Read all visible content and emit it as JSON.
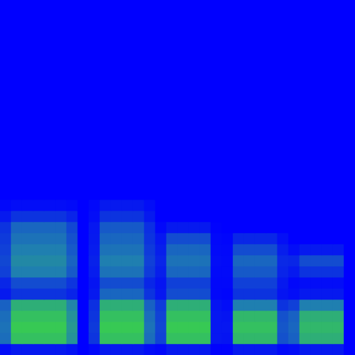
{
  "chart_data": {
    "type": "heatmap",
    "tick_labels": false,
    "zlim": [
      0,
      1
    ],
    "z": [
      [
        0.05,
        0.1,
        0.1,
        0.1,
        0.1,
        0.1,
        0.07,
        0,
        0.03,
        0.1,
        0.1,
        0.1,
        0.1,
        0.05,
        0.03,
        0.1,
        0.1,
        0.1,
        0.1,
        0.01,
        0.01,
        0.1,
        0.1,
        0.1,
        0.1,
        0.04,
        0.05,
        0.1,
        0.1,
        0.1,
        0.1,
        0
      ],
      [
        0.43,
        0.85,
        0.85,
        0.85,
        0.85,
        0.85,
        0.6,
        0,
        0.21,
        0.85,
        0.85,
        0.85,
        0.85,
        0.43,
        0.26,
        0.85,
        0.85,
        0.85,
        0.85,
        0.09,
        0.08,
        0.8,
        0.8,
        0.8,
        0.8,
        0.32,
        0.38,
        0.75,
        0.75,
        0.75,
        0.75,
        0
      ],
      [
        0.45,
        0.9,
        0.9,
        0.9,
        0.9,
        0.9,
        0.63,
        0,
        0.23,
        0.9,
        0.9,
        0.9,
        0.9,
        0.45,
        0.27,
        0.9,
        0.9,
        0.9,
        0.9,
        0.09,
        0.09,
        0.85,
        0.85,
        0.85,
        0.85,
        0.34,
        0.4,
        0.8,
        0.8,
        0.8,
        0.8,
        0
      ],
      [
        0.43,
        0.85,
        0.85,
        0.85,
        0.85,
        0.85,
        0.6,
        0,
        0.21,
        0.85,
        0.85,
        0.85,
        0.85,
        0.43,
        0.26,
        0.85,
        0.85,
        0.85,
        0.85,
        0.09,
        0.08,
        0.8,
        0.8,
        0.8,
        0.8,
        0.32,
        0.38,
        0.75,
        0.75,
        0.75,
        0.75,
        0
      ],
      [
        0.38,
        0.75,
        0.75,
        0.75,
        0.75,
        0.75,
        0.53,
        0,
        0.19,
        0.75,
        0.75,
        0.75,
        0.75,
        0.38,
        0.23,
        0.75,
        0.75,
        0.75,
        0.75,
        0.08,
        0.05,
        0.5,
        0.5,
        0.5,
        0.5,
        0.2,
        0.25,
        0.5,
        0.5,
        0.5,
        0.5,
        0
      ],
      [
        0.1,
        0.2,
        0.2,
        0.2,
        0.2,
        0.2,
        0.14,
        0,
        0.1,
        0.4,
        0.4,
        0.4,
        0.4,
        0.2,
        0.09,
        0.3,
        0.3,
        0.3,
        0.3,
        0.03,
        0.02,
        0.2,
        0.2,
        0.2,
        0.2,
        0.08,
        0.05,
        0.1,
        0.1,
        0.1,
        0.1,
        0
      ],
      [
        0.15,
        0.3,
        0.3,
        0.3,
        0.3,
        0.3,
        0.21,
        0,
        0.08,
        0.3,
        0.3,
        0.3,
        0.3,
        0.15,
        0.08,
        0.25,
        0.25,
        0.25,
        0.25,
        0.03,
        0.03,
        0.25,
        0.25,
        0.25,
        0.25,
        0.1,
        0.03,
        0.05,
        0.05,
        0.05,
        0.05,
        0
      ],
      [
        0.25,
        0.5,
        0.5,
        0.5,
        0.5,
        0.5,
        0.35,
        0,
        0.11,
        0.45,
        0.45,
        0.45,
        0.45,
        0.23,
        0.12,
        0.4,
        0.4,
        0.4,
        0.4,
        0.04,
        0.04,
        0.35,
        0.35,
        0.35,
        0.35,
        0.14,
        0.1,
        0.2,
        0.2,
        0.2,
        0.2,
        0
      ],
      [
        0.28,
        0.55,
        0.55,
        0.55,
        0.55,
        0.55,
        0.39,
        0,
        0.13,
        0.5,
        0.5,
        0.5,
        0.5,
        0.25,
        0.14,
        0.45,
        0.45,
        0.45,
        0.45,
        0.05,
        0.04,
        0.4,
        0.4,
        0.4,
        0.4,
        0.16,
        0.15,
        0.3,
        0.3,
        0.3,
        0.3,
        0
      ],
      [
        0.25,
        0.5,
        0.5,
        0.5,
        0.5,
        0.5,
        0.35,
        0,
        0.11,
        0.45,
        0.45,
        0.45,
        0.45,
        0.23,
        0.12,
        0.4,
        0.4,
        0.4,
        0.4,
        0.04,
        0.03,
        0.3,
        0.3,
        0.3,
        0.3,
        0.12,
        0.05,
        0.1,
        0.1,
        0.1,
        0.1,
        0
      ],
      [
        0.23,
        0.45,
        0.45,
        0.45,
        0.45,
        0.45,
        0.32,
        0,
        0.1,
        0.4,
        0.4,
        0.4,
        0.4,
        0.2,
        0.09,
        0.3,
        0.3,
        0.3,
        0.3,
        0.03,
        0.02,
        0.15,
        0.15,
        0.15,
        0.15,
        0.06,
        0,
        0,
        0,
        0,
        0,
        0
      ],
      [
        0.2,
        0.4,
        0.4,
        0.4,
        0.4,
        0.4,
        0.28,
        0,
        0.09,
        0.35,
        0.35,
        0.35,
        0.35,
        0.18,
        0.03,
        0.1,
        0.1,
        0.1,
        0.1,
        0.01,
        0,
        0,
        0,
        0,
        0,
        0,
        0,
        0,
        0,
        0,
        0,
        0
      ],
      [
        0.1,
        0.2,
        0.2,
        0.2,
        0.2,
        0.2,
        0.14,
        0,
        0.05,
        0.2,
        0.2,
        0.2,
        0.2,
        0.1,
        0,
        0,
        0,
        0,
        0,
        0,
        0,
        0,
        0,
        0,
        0,
        0,
        0,
        0,
        0,
        0,
        0,
        0
      ],
      [
        0.03,
        0.05,
        0.05,
        0.05,
        0.05,
        0.05,
        0.04,
        0,
        0.03,
        0.1,
        0.1,
        0.1,
        0.1,
        0.05,
        0,
        0,
        0,
        0,
        0,
        0,
        0,
        0,
        0,
        0,
        0,
        0,
        0,
        0,
        0,
        0,
        0,
        0
      ],
      [
        0,
        0,
        0,
        0,
        0,
        0,
        0,
        0,
        0,
        0,
        0,
        0,
        0,
        0,
        0,
        0,
        0,
        0,
        0,
        0,
        0,
        0,
        0,
        0,
        0,
        0,
        0,
        0,
        0,
        0,
        0,
        0
      ],
      [
        0,
        0,
        0,
        0,
        0,
        0,
        0,
        0,
        0,
        0,
        0,
        0,
        0,
        0,
        0,
        0,
        0,
        0,
        0,
        0,
        0,
        0,
        0,
        0,
        0,
        0,
        0,
        0,
        0,
        0,
        0,
        0
      ],
      [
        0,
        0,
        0,
        0,
        0,
        0,
        0,
        0,
        0,
        0,
        0,
        0,
        0,
        0,
        0,
        0,
        0,
        0,
        0,
        0,
        0,
        0,
        0,
        0,
        0,
        0,
        0,
        0,
        0,
        0,
        0,
        0
      ],
      [
        0,
        0,
        0,
        0,
        0,
        0,
        0,
        0,
        0,
        0,
        0,
        0,
        0,
        0,
        0,
        0,
        0,
        0,
        0,
        0,
        0,
        0,
        0,
        0,
        0,
        0,
        0,
        0,
        0,
        0,
        0,
        0
      ],
      [
        0,
        0,
        0,
        0,
        0,
        0,
        0,
        0,
        0,
        0,
        0,
        0,
        0,
        0,
        0,
        0,
        0,
        0,
        0,
        0,
        0,
        0,
        0,
        0,
        0,
        0,
        0,
        0,
        0,
        0,
        0,
        0
      ],
      [
        0,
        0,
        0,
        0,
        0,
        0,
        0,
        0,
        0,
        0,
        0,
        0,
        0,
        0,
        0,
        0,
        0,
        0,
        0,
        0,
        0,
        0,
        0,
        0,
        0,
        0,
        0,
        0,
        0,
        0,
        0,
        0
      ],
      [
        0,
        0,
        0,
        0,
        0,
        0,
        0,
        0,
        0,
        0,
        0,
        0,
        0,
        0,
        0,
        0,
        0,
        0,
        0,
        0,
        0,
        0,
        0,
        0,
        0,
        0,
        0,
        0,
        0,
        0,
        0,
        0
      ],
      [
        0,
        0,
        0,
        0,
        0,
        0,
        0,
        0,
        0,
        0,
        0,
        0,
        0,
        0,
        0,
        0,
        0,
        0,
        0,
        0,
        0,
        0,
        0,
        0,
        0,
        0,
        0,
        0,
        0,
        0,
        0,
        0
      ],
      [
        0,
        0,
        0,
        0,
        0,
        0,
        0,
        0,
        0,
        0,
        0,
        0,
        0,
        0,
        0,
        0,
        0,
        0,
        0,
        0,
        0,
        0,
        0,
        0,
        0,
        0,
        0,
        0,
        0,
        0,
        0,
        0
      ],
      [
        0,
        0,
        0,
        0,
        0,
        0,
        0,
        0,
        0,
        0,
        0,
        0,
        0,
        0,
        0,
        0,
        0,
        0,
        0,
        0,
        0,
        0,
        0,
        0,
        0,
        0,
        0,
        0,
        0,
        0,
        0,
        0
      ],
      [
        0,
        0,
        0,
        0,
        0,
        0,
        0,
        0,
        0,
        0,
        0,
        0,
        0,
        0,
        0,
        0,
        0,
        0,
        0,
        0,
        0,
        0,
        0,
        0,
        0,
        0,
        0,
        0,
        0,
        0,
        0,
        0
      ],
      [
        0,
        0,
        0,
        0,
        0,
        0,
        0,
        0,
        0,
        0,
        0,
        0,
        0,
        0,
        0,
        0,
        0,
        0,
        0,
        0,
        0,
        0,
        0,
        0,
        0,
        0,
        0,
        0,
        0,
        0,
        0,
        0
      ],
      [
        0,
        0,
        0,
        0,
        0,
        0,
        0,
        0,
        0,
        0,
        0,
        0,
        0,
        0,
        0,
        0,
        0,
        0,
        0,
        0,
        0,
        0,
        0,
        0,
        0,
        0,
        0,
        0,
        0,
        0,
        0,
        0
      ],
      [
        0,
        0,
        0,
        0,
        0,
        0,
        0,
        0,
        0,
        0,
        0,
        0,
        0,
        0,
        0,
        0,
        0,
        0,
        0,
        0,
        0,
        0,
        0,
        0,
        0,
        0,
        0,
        0,
        0,
        0,
        0,
        0
      ],
      [
        0,
        0,
        0,
        0,
        0,
        0,
        0,
        0,
        0,
        0,
        0,
        0,
        0,
        0,
        0,
        0,
        0,
        0,
        0,
        0,
        0,
        0,
        0,
        0,
        0,
        0,
        0,
        0,
        0,
        0,
        0,
        0
      ],
      [
        0,
        0,
        0,
        0,
        0,
        0,
        0,
        0,
        0,
        0,
        0,
        0,
        0,
        0,
        0,
        0,
        0,
        0,
        0,
        0,
        0,
        0,
        0,
        0,
        0,
        0,
        0,
        0,
        0,
        0,
        0,
        0
      ],
      [
        0,
        0,
        0,
        0,
        0,
        0,
        0,
        0,
        0,
        0,
        0,
        0,
        0,
        0,
        0,
        0,
        0,
        0,
        0,
        0,
        0,
        0,
        0,
        0,
        0,
        0,
        0,
        0,
        0,
        0,
        0,
        0
      ],
      [
        0,
        0,
        0,
        0,
        0,
        0,
        0,
        0,
        0,
        0,
        0,
        0,
        0,
        0,
        0,
        0,
        0,
        0,
        0,
        0,
        0,
        0,
        0,
        0,
        0,
        0,
        0,
        0,
        0,
        0,
        0,
        0
      ]
    ]
  }
}
